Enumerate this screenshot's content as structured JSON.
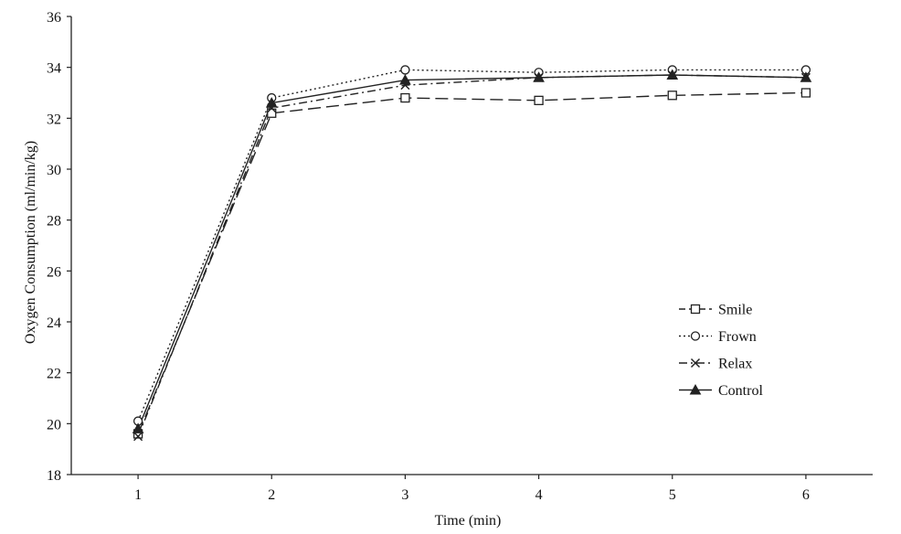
{
  "chart_data": {
    "type": "line",
    "title": "",
    "xlabel": "Time (min)",
    "ylabel": "Oxygen Consumption (ml/min/kg)",
    "x": [
      1,
      2,
      3,
      4,
      5,
      6
    ],
    "xlim": [
      0.5,
      6.5
    ],
    "ylim": [
      18,
      36
    ],
    "x_ticks": [
      "1",
      "2",
      "3",
      "4",
      "5",
      "6"
    ],
    "y_ticks": [
      "18",
      "20",
      "22",
      "24",
      "26",
      "28",
      "30",
      "32",
      "34",
      "36"
    ],
    "grid": false,
    "legend": "right",
    "series": [
      {
        "name": "Smile",
        "marker": "square-open",
        "line_style": "long-dash",
        "color": "#222222",
        "values": [
          19.6,
          32.2,
          32.8,
          32.7,
          32.9,
          33.0
        ]
      },
      {
        "name": "Frown",
        "marker": "circle-open",
        "line_style": "dotted",
        "color": "#222222",
        "values": [
          20.1,
          32.8,
          33.9,
          33.8,
          33.9,
          33.9
        ]
      },
      {
        "name": "Relax",
        "marker": "x",
        "line_style": "dash-dot",
        "color": "#222222",
        "values": [
          19.5,
          32.4,
          33.3,
          33.6,
          33.7,
          33.6
        ]
      },
      {
        "name": "Control",
        "marker": "triangle-filled",
        "line_style": "solid",
        "color": "#222222",
        "values": [
          19.8,
          32.6,
          33.5,
          33.6,
          33.7,
          33.6
        ]
      }
    ]
  }
}
